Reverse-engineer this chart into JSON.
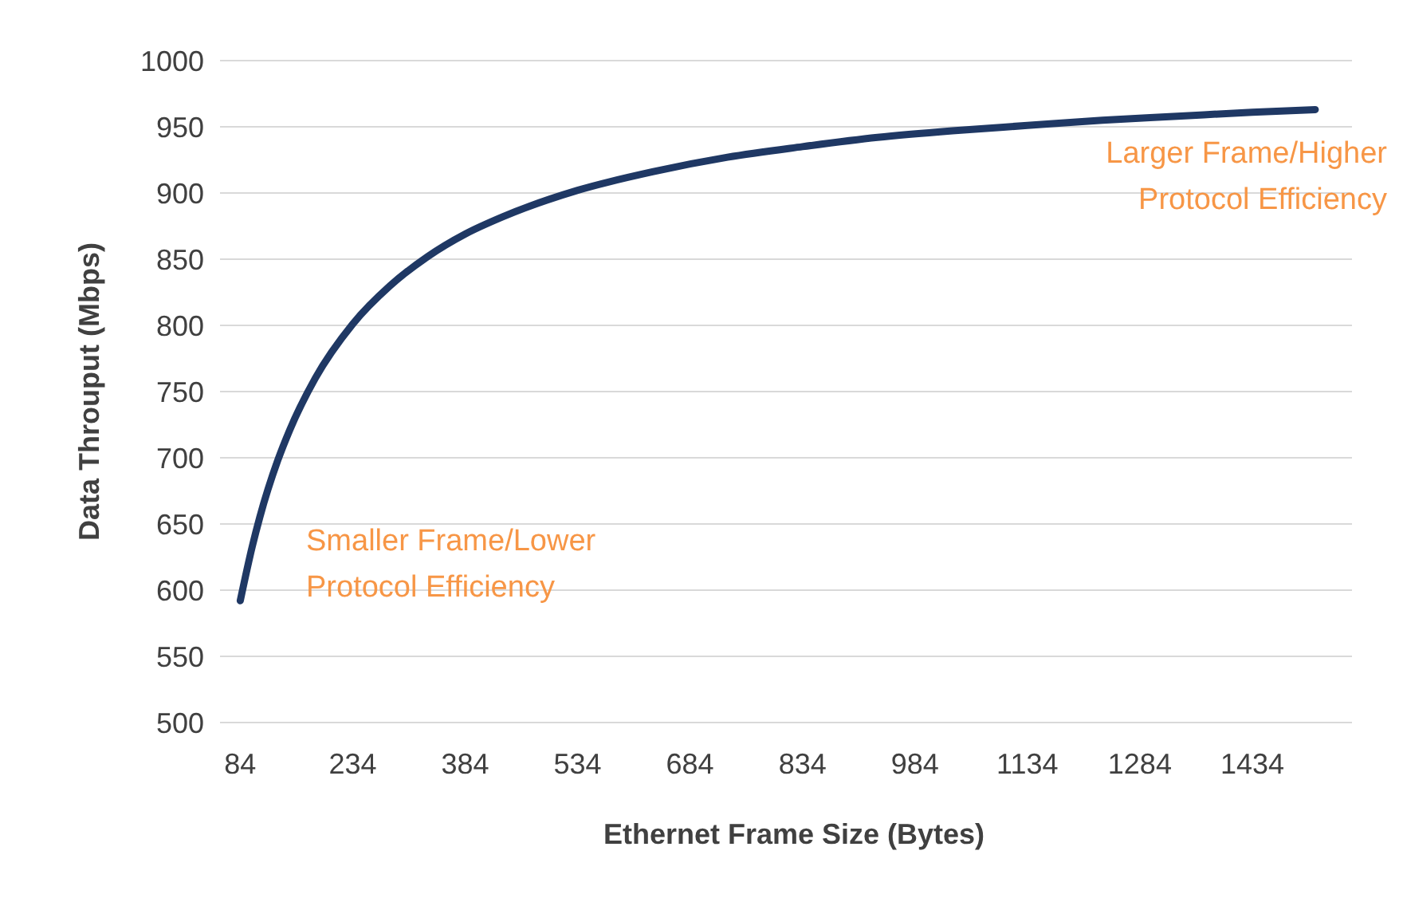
{
  "chart_data": {
    "type": "line",
    "xlabel": "Ethernet Frame Size (Bytes)",
    "ylabel": "Data Throuput (Mbps)",
    "x": [
      84,
      100,
      110,
      134,
      150,
      184,
      234,
      284,
      334,
      384,
      434,
      534,
      634,
      734,
      834,
      934,
      1034,
      1134,
      1234,
      1334,
      1434,
      1518
    ],
    "series": [
      {
        "color": "#1f3864",
        "values": [
          592,
          633,
          655,
          698,
          721,
          760,
          801,
          830,
          852,
          869,
          882,
          902,
          916,
          927,
          935,
          942,
          947,
          951,
          955,
          958,
          961,
          963
        ]
      }
    ],
    "xlim": [
      57,
      1567
    ],
    "xticks": [
      84,
      234,
      384,
      534,
      684,
      834,
      984,
      1134,
      1284,
      1434
    ],
    "ylim": [
      500,
      1000
    ],
    "yticks": [
      500,
      550,
      600,
      650,
      700,
      750,
      800,
      850,
      900,
      950,
      1000
    ],
    "grid": "y",
    "marker": "none",
    "line_style": "solid",
    "annotations": [
      "Smaller Frame/Lower Protocol Efficiency",
      "Larger Frame/Higher Protocol Efficiency"
    ]
  }
}
